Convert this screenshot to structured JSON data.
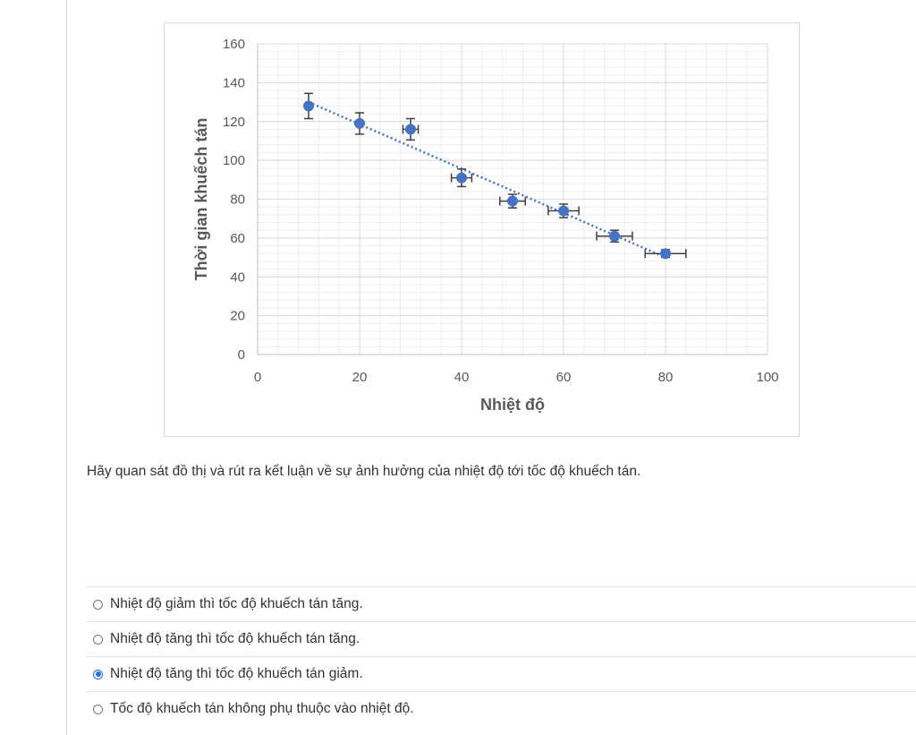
{
  "chart_data": {
    "type": "scatter",
    "xlabel": "Nhiệt độ",
    "ylabel": "Thời gian khuếch tán",
    "xlim": [
      0,
      100
    ],
    "ylim": [
      0,
      160
    ],
    "xticks": [
      0,
      20,
      40,
      60,
      80,
      100
    ],
    "yticks": [
      0,
      20,
      40,
      60,
      80,
      100,
      120,
      140,
      160
    ],
    "grid": true,
    "trendline": "linear dotted",
    "points": [
      {
        "x": 10,
        "y": 128,
        "xerr": 0,
        "yerr": 6.5
      },
      {
        "x": 20,
        "y": 119,
        "xerr": 0,
        "yerr": 5.5
      },
      {
        "x": 30,
        "y": 116,
        "xerr": 1.5,
        "yerr": 5.5
      },
      {
        "x": 40,
        "y": 91,
        "xerr": 2,
        "yerr": 4.5
      },
      {
        "x": 50,
        "y": 79,
        "xerr": 2.5,
        "yerr": 3.5
      },
      {
        "x": 60,
        "y": 74,
        "xerr": 3,
        "yerr": 3.5
      },
      {
        "x": 70,
        "y": 61,
        "xerr": 3.5,
        "yerr": 3
      },
      {
        "x": 80,
        "y": 52,
        "xerr": 4,
        "yerr": 2
      }
    ],
    "colors": {
      "marker": "#4472c4",
      "error_bar": "#404040",
      "trend": "#4472c4",
      "grid": "#d9d9d9"
    }
  },
  "question": {
    "text": "Hãy quan sát đồ thị và rút ra kết luận về sự ảnh hưởng của nhiệt độ tới tốc độ khuếch tán."
  },
  "options": [
    {
      "label": "Nhiệt độ giảm thì tốc độ khuếch tán tăng.",
      "selected": false
    },
    {
      "label": "Nhiệt độ tăng thì tốc độ khuếch tán tăng.",
      "selected": false
    },
    {
      "label": "Nhiệt độ tăng thì tốc độ khuếch tán giảm.",
      "selected": true
    },
    {
      "label": "Tốc độ khuếch tán không phụ thuộc vào nhiệt độ.",
      "selected": false
    }
  ]
}
